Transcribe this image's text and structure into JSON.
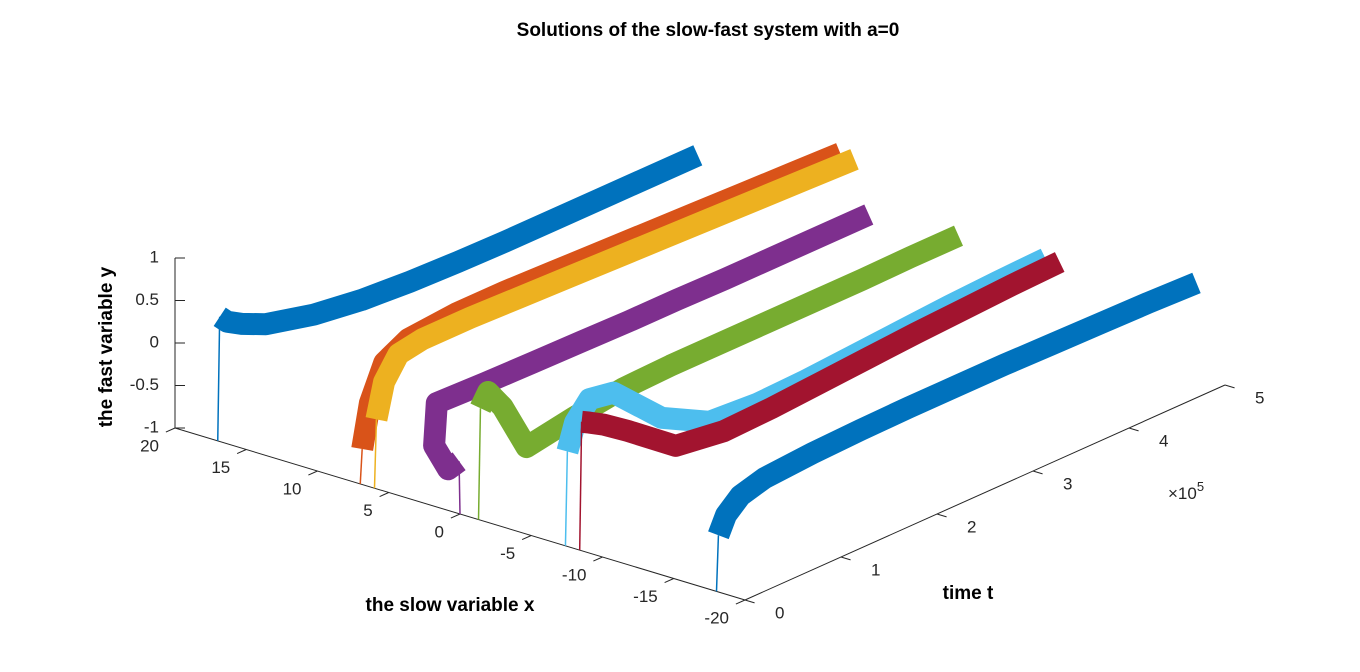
{
  "chart_data": {
    "type": "line3d",
    "title": "Solutions of the slow-fast system with a=0",
    "xlabel": "the slow variable x",
    "ylabel": "the fast variable y",
    "tlabel": "time t",
    "t_multiplier": {
      "base": "×10",
      "exponent": "5"
    },
    "xlim": [
      -20,
      20
    ],
    "xticks": [
      -20,
      -15,
      -10,
      -5,
      0,
      5,
      10,
      15,
      20
    ],
    "ylim": [
      -1,
      1
    ],
    "yticks": [
      -1,
      -0.5,
      0,
      0.5,
      1
    ],
    "tlim": [
      0,
      500000
    ],
    "tticks": [
      0,
      {
        "value": 100000,
        "label": "1"
      },
      {
        "value": 200000,
        "label": "2"
      },
      {
        "value": 300000,
        "label": "3"
      },
      {
        "value": 400000,
        "label": "4"
      },
      {
        "value": 500000,
        "label": "5"
      }
    ],
    "t": [
      0,
      2000,
      10000,
      25000,
      50000,
      100000,
      150000,
      200000,
      250000,
      300000,
      350000,
      400000,
      450000,
      500000
    ],
    "series": [
      {
        "color": "#0072BD",
        "x": [
          17,
          17,
          17,
          17,
          17,
          17,
          17,
          17,
          17,
          17,
          17,
          17,
          17,
          17
        ],
        "values": [
          -1,
          0.45,
          0.35,
          0.25,
          0.12,
          -0.02,
          -0.1,
          -0.14,
          -0.16,
          -0.17,
          -0.17,
          -0.17,
          -0.17,
          -0.17
        ]
      },
      {
        "color": "#D95319",
        "x": [
          7,
          7,
          7,
          7,
          7,
          7,
          7,
          7,
          7,
          7,
          7,
          7,
          7,
          7
        ],
        "values": [
          -1,
          -0.6,
          -0.1,
          0.3,
          0.45,
          0.5,
          0.5,
          0.48,
          0.46,
          0.44,
          0.42,
          0.4,
          0.38,
          0.36
        ]
      },
      {
        "color": "#EDB120",
        "x": [
          6,
          6,
          6,
          6,
          6,
          6,
          6,
          6,
          6,
          6,
          6,
          6,
          6,
          6
        ],
        "values": [
          -1,
          -0.2,
          0.2,
          0.45,
          0.5,
          0.5,
          0.48,
          0.46,
          0.44,
          0.42,
          0.4,
          0.38,
          0.36,
          0.34
        ]
      },
      {
        "color": "#7E2F8E",
        "x": [
          0,
          0.2,
          1.5,
          3.5,
          5,
          5,
          5,
          5,
          5,
          5,
          5,
          5,
          5,
          5
        ],
        "values": [
          -1,
          -0.4,
          -0.6,
          -0.5,
          -0.2,
          -0.22,
          -0.23,
          -0.24,
          -0.25,
          -0.25,
          -0.26,
          -0.26,
          -0.26,
          -0.26
        ]
      },
      {
        "color": "#77AC30",
        "x": [
          -1.3,
          -1.3,
          -1.3,
          -1.3,
          -1.3,
          -1.3,
          -1.3,
          -1.3,
          -1.3,
          -1.3,
          -1.3,
          -1.3,
          -1.3,
          -1.3
        ],
        "values": [
          -1,
          0.3,
          0.45,
          0.2,
          -0.4,
          -0.3,
          -0.22,
          -0.2,
          -0.2,
          -0.2,
          -0.2,
          -0.2,
          -0.19,
          -0.19
        ]
      },
      {
        "color": "#4DBEEE",
        "x": [
          -7.4,
          -7.4,
          -7.4,
          -7.4,
          -7.4,
          -7.4,
          -7.4,
          -7.4,
          -7.4,
          -7.4,
          -7.4,
          -7.4,
          -7.4,
          -7.4
        ],
        "values": [
          -1,
          0.1,
          0.4,
          0.6,
          0.55,
          0,
          -0.3,
          -0.34,
          -0.32,
          -0.28,
          -0.24,
          -0.2,
          -0.17,
          -0.15
        ]
      },
      {
        "color": "#A2142F",
        "x": [
          -8.4,
          -8.4,
          -8.4,
          -8.4,
          -8.4,
          -8.4,
          -8.4,
          -8.4,
          -8.4,
          -8.4,
          -8.4,
          -8.4,
          -8.4,
          -8.4
        ],
        "values": [
          -1,
          0.5,
          0.45,
          0.35,
          0.15,
          -0.28,
          -0.36,
          -0.34,
          -0.3,
          -0.26,
          -0.22,
          -0.19,
          -0.16,
          -0.14
        ]
      },
      {
        "color": "#0072BD",
        "x": [
          -18,
          -18,
          -18,
          -18,
          -18,
          -18,
          -18,
          -18,
          -18,
          -18,
          -18,
          -18,
          -18,
          -18
        ],
        "values": [
          -1,
          -0.35,
          -0.15,
          0,
          0.08,
          0.12,
          0.14,
          0.15,
          0.15,
          0.15,
          0.14,
          0.13,
          0.12,
          0.1
        ]
      }
    ]
  }
}
